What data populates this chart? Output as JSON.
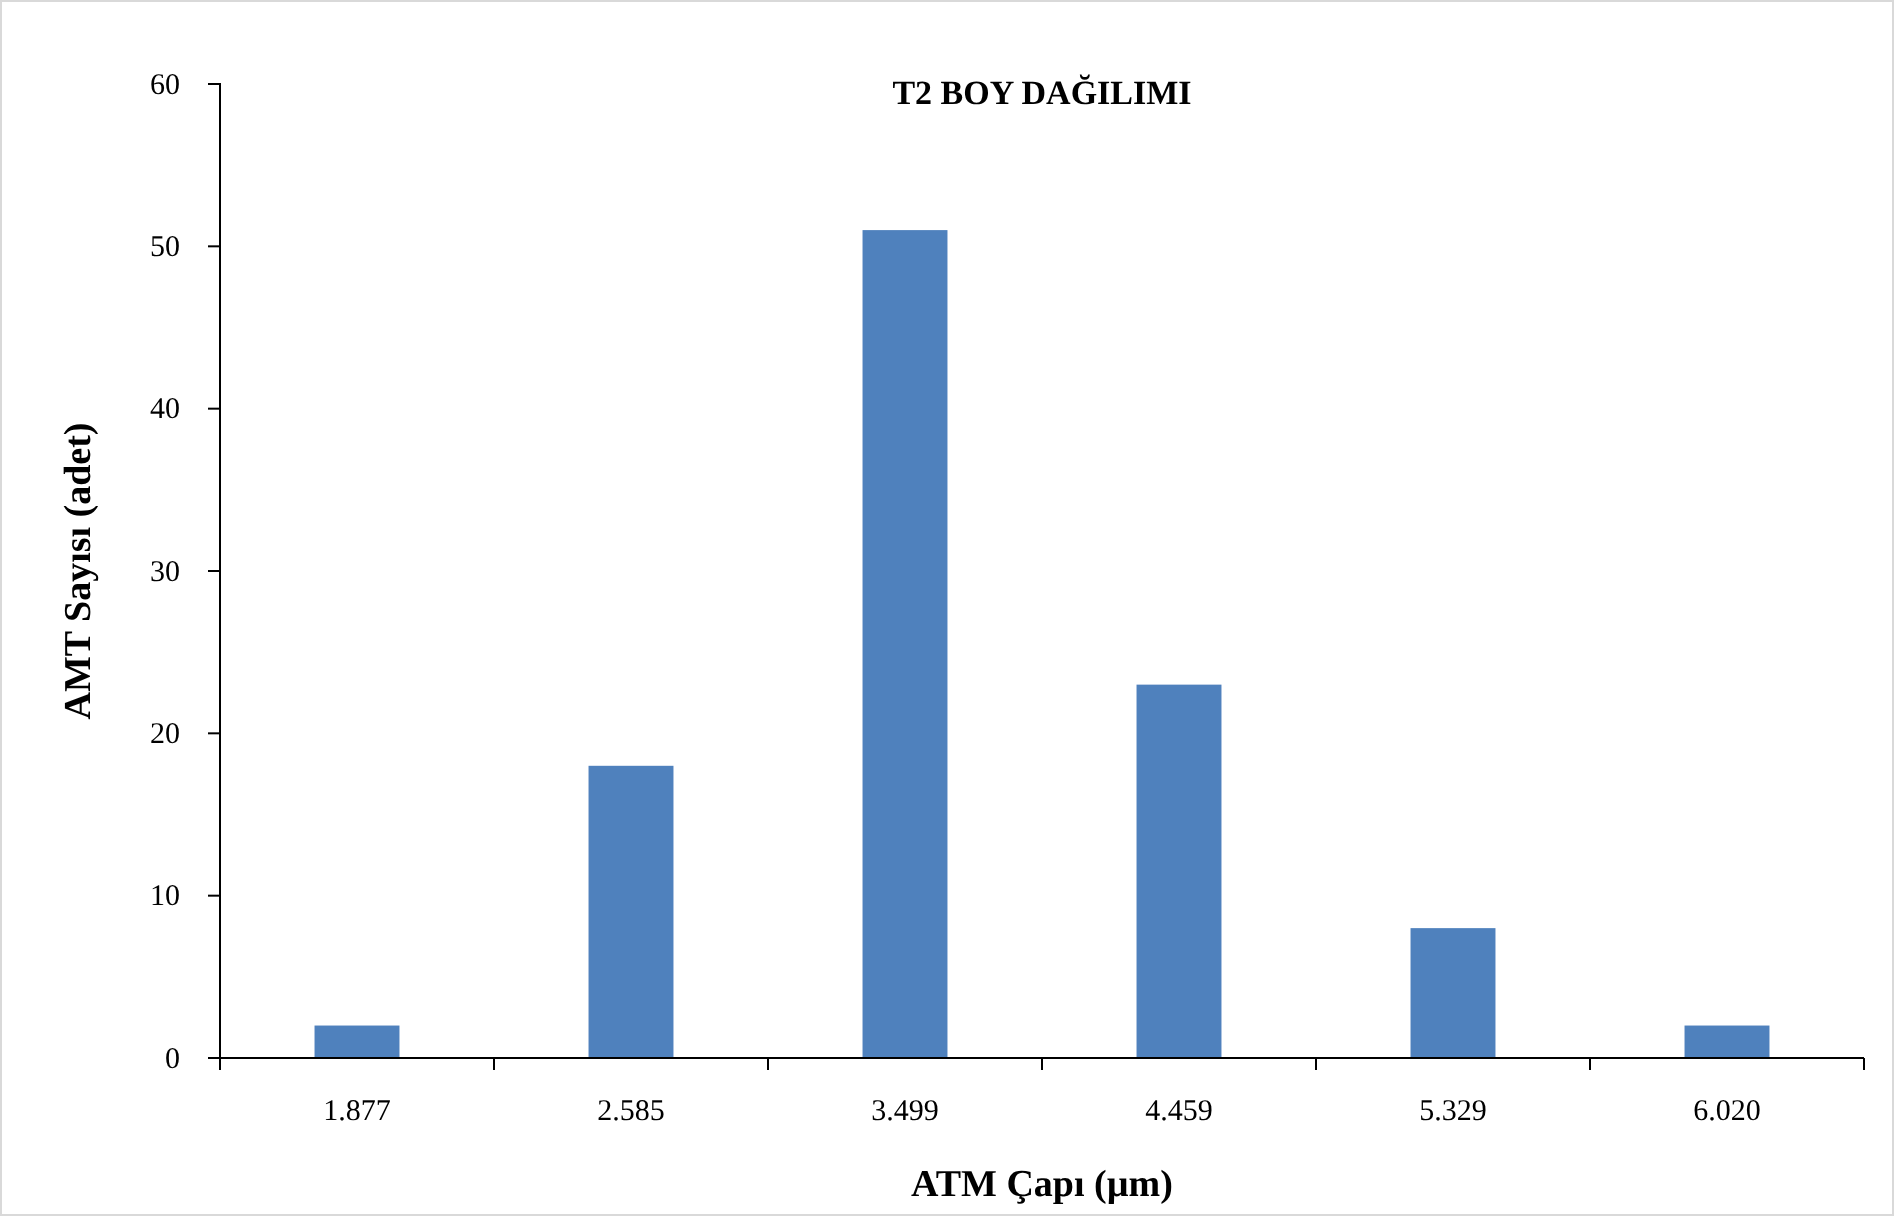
{
  "chart_data": {
    "type": "bar",
    "title": "T2 BOY DAĞILIMI",
    "xlabel": "ATM Çapı (µm)",
    "ylabel": "AMT Sayısı (adet)",
    "categories": [
      "1.877",
      "2.585",
      "3.499",
      "4.459",
      "5.329",
      "6.020"
    ],
    "values": [
      2,
      18,
      51,
      23,
      8,
      2
    ],
    "color": "#4f81bd",
    "ylim": [
      0,
      60
    ],
    "yticks": [
      0,
      10,
      20,
      30,
      40,
      50,
      60
    ]
  }
}
